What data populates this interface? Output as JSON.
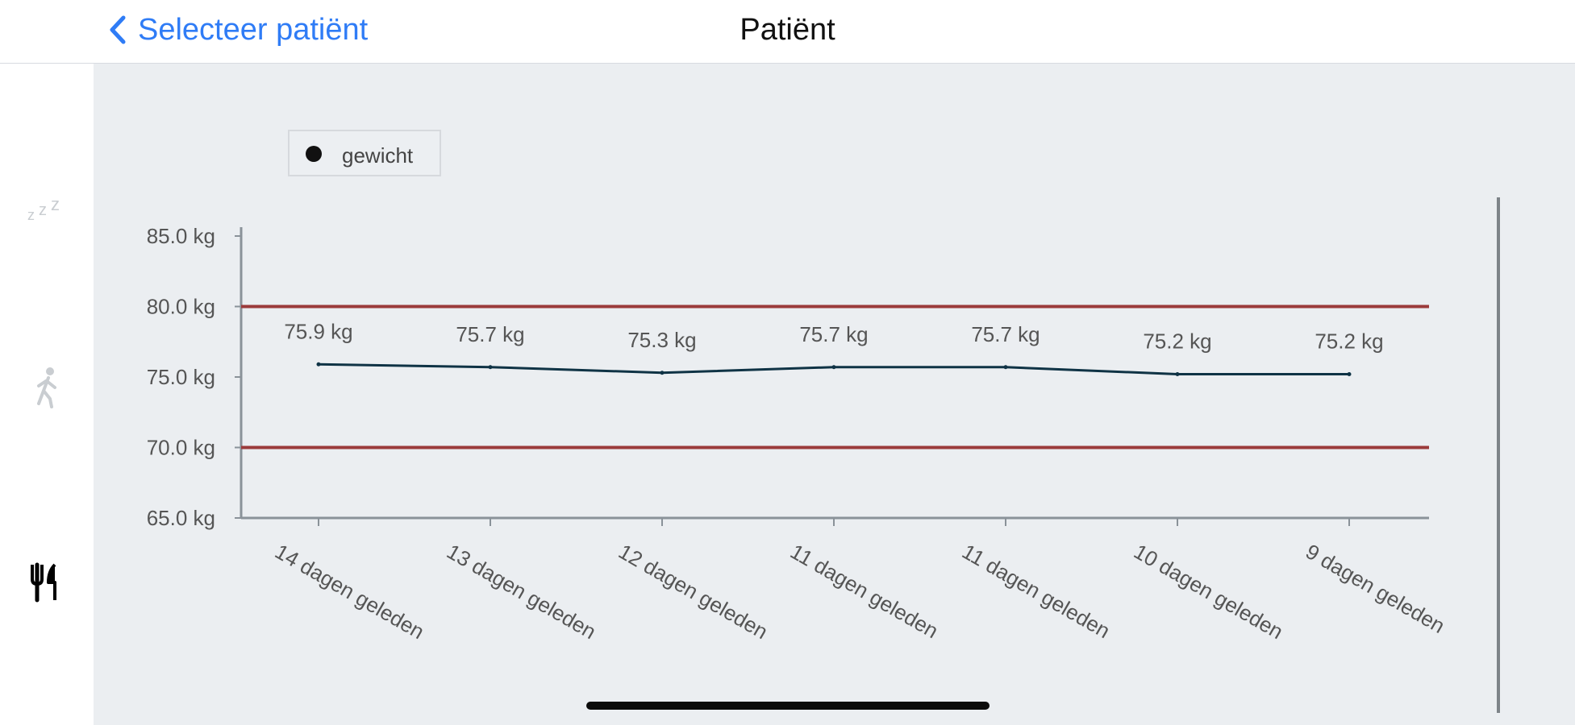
{
  "navbar": {
    "back_label": "Selecteer patiënt",
    "title": "Patiënt"
  },
  "sidebar": {
    "items": [
      {
        "icon": "sleep-icon",
        "active": false
      },
      {
        "icon": "walking-icon",
        "active": false
      },
      {
        "icon": "fork-knife-icon",
        "active": true
      }
    ]
  },
  "colors": {
    "accent": "#2f7cf6",
    "threshold": "#9b3b3b",
    "series_line": "#0f3345",
    "axis": "#8a9299",
    "background": "#ebeef1"
  },
  "chart_data": {
    "type": "line",
    "legend": [
      "gewicht"
    ],
    "series": [
      {
        "name": "gewicht",
        "values": [
          75.9,
          75.7,
          75.3,
          75.7,
          75.7,
          75.2,
          75.2
        ]
      }
    ],
    "value_labels": [
      "75.9 kg",
      "75.7 kg",
      "75.3 kg",
      "75.7 kg",
      "75.7 kg",
      "75.2 kg",
      "75.2 kg"
    ],
    "categories": [
      "14 dagen geleden",
      "13 dagen geleden",
      "12 dagen geleden",
      "11 dagen geleden",
      "11 dagen geleden",
      "10 dagen geleden",
      "9 dagen geleden"
    ],
    "y_ticks": [
      85,
      80,
      75,
      70,
      65
    ],
    "y_tick_labels": [
      "85.0 kg",
      "80.0 kg",
      "75.0 kg",
      "70.0 kg",
      "65.0 kg"
    ],
    "ylim": [
      65,
      85
    ],
    "thresholds": [
      80,
      70
    ],
    "grid": false
  }
}
